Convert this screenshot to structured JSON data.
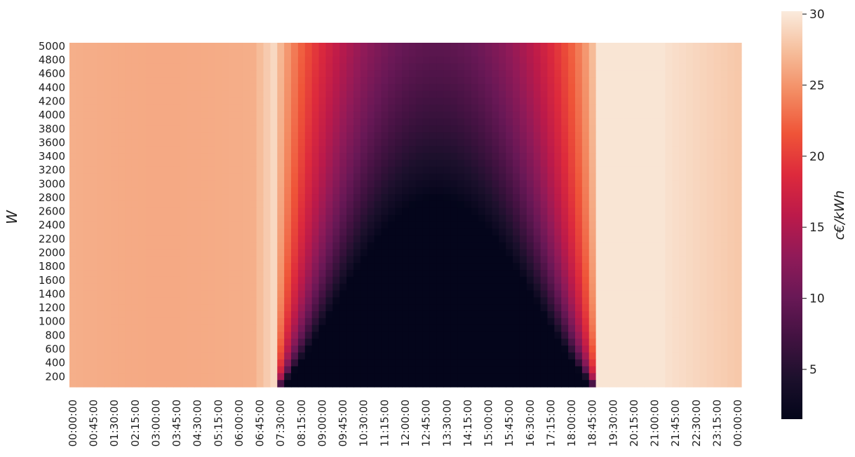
{
  "chart_data": {
    "type": "heatmap",
    "title": "",
    "xlabel": "",
    "ylabel": "W",
    "x_tick_labels": [
      "00:00:00",
      "00:45:00",
      "01:30:00",
      "02:15:00",
      "03:00:00",
      "03:45:00",
      "04:30:00",
      "05:15:00",
      "06:00:00",
      "06:45:00",
      "07:30:00",
      "08:15:00",
      "09:00:00",
      "09:45:00",
      "10:30:00",
      "11:15:00",
      "12:00:00",
      "12:45:00",
      "13:30:00",
      "14:15:00",
      "15:00:00",
      "15:45:00",
      "16:30:00",
      "17:15:00",
      "18:00:00",
      "18:45:00",
      "19:30:00",
      "20:15:00",
      "21:00:00",
      "21:45:00",
      "22:30:00",
      "23:15:00",
      "00:00:00"
    ],
    "y_tick_labels": [
      "5000",
      "4800",
      "4600",
      "4400",
      "4200",
      "4000",
      "3800",
      "3600",
      "3400",
      "3200",
      "3000",
      "2800",
      "2600",
      "2400",
      "2200",
      "2000",
      "1800",
      "1600",
      "1400",
      "1200",
      "1000",
      "800",
      "600",
      "400",
      "200"
    ],
    "x_interval_minutes": 15,
    "x_count": 97,
    "y_min": 100,
    "y_max": 5000,
    "y_step": 100,
    "colorbar": {
      "label": "c€/kWh",
      "ticks": [
        "5",
        "10",
        "15",
        "20",
        "25",
        "30"
      ],
      "min": 1.5,
      "max": 30.2,
      "colormap": "rocket"
    },
    "pattern_description": {
      "night_price": 26.5,
      "evening_peak_price": 29.5,
      "midday_low_price": 1.6,
      "daylight_window": [
        "07:15",
        "19:00"
      ],
      "solar_peak_time": "13:45"
    }
  }
}
